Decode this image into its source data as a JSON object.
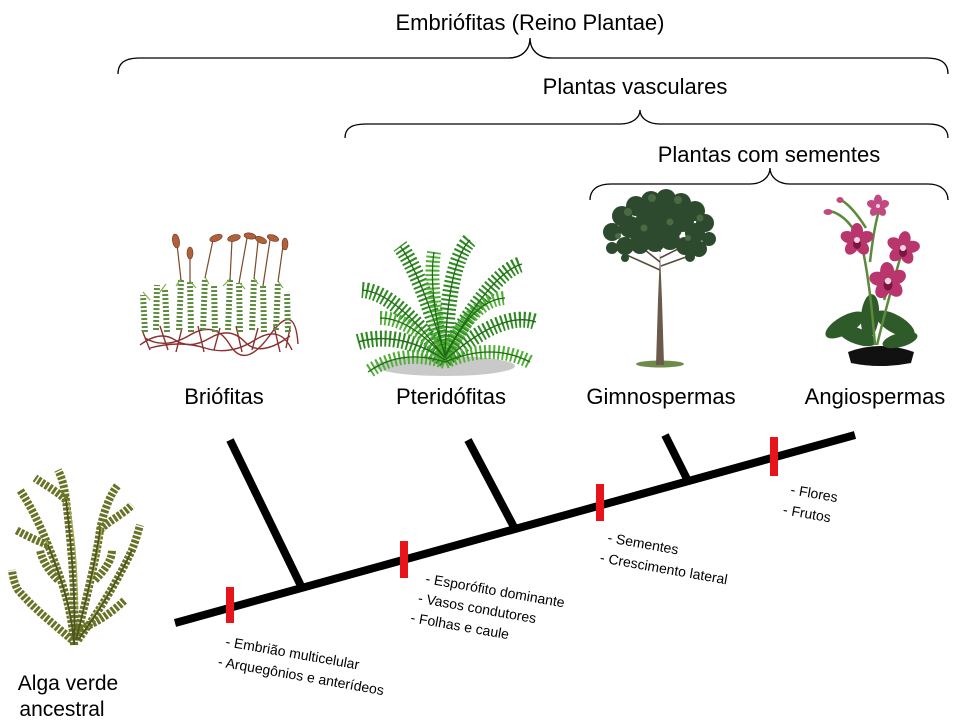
{
  "groups": [
    {
      "label": "Embriófitas (Reino Plantae)"
    },
    {
      "label": "Plantas vasculares"
    },
    {
      "label": "Plantas com sementes"
    }
  ],
  "taxa": [
    {
      "label": "Briófitas",
      "icon": "moss-icon"
    },
    {
      "label": "Pteridófitas",
      "icon": "fern-icon"
    },
    {
      "label": "Gimnospermas",
      "icon": "conifer-tree-icon"
    },
    {
      "label": "Angiospermas",
      "icon": "orchid-flower-icon"
    }
  ],
  "ancestor": {
    "lines": [
      "Alga verde",
      "ancestral"
    ],
    "icon": "green-alga-icon"
  },
  "traits": [
    {
      "lines": [
        "- Embrião multicelular",
        "- Arquegônios e anterídeos"
      ]
    },
    {
      "lines": [
        "- Esporófito dominante",
        "- Vasos condutores",
        "- Folhas e caule"
      ]
    },
    {
      "lines": [
        "- Sementes",
        "- Crescimento lateral"
      ]
    },
    {
      "lines": [
        "- Flores",
        "- Frutos"
      ]
    }
  ],
  "colors": {
    "background": "#ffffff",
    "tree_line": "#000000",
    "trait_marker": "#e8141c",
    "text": "#000000"
  }
}
